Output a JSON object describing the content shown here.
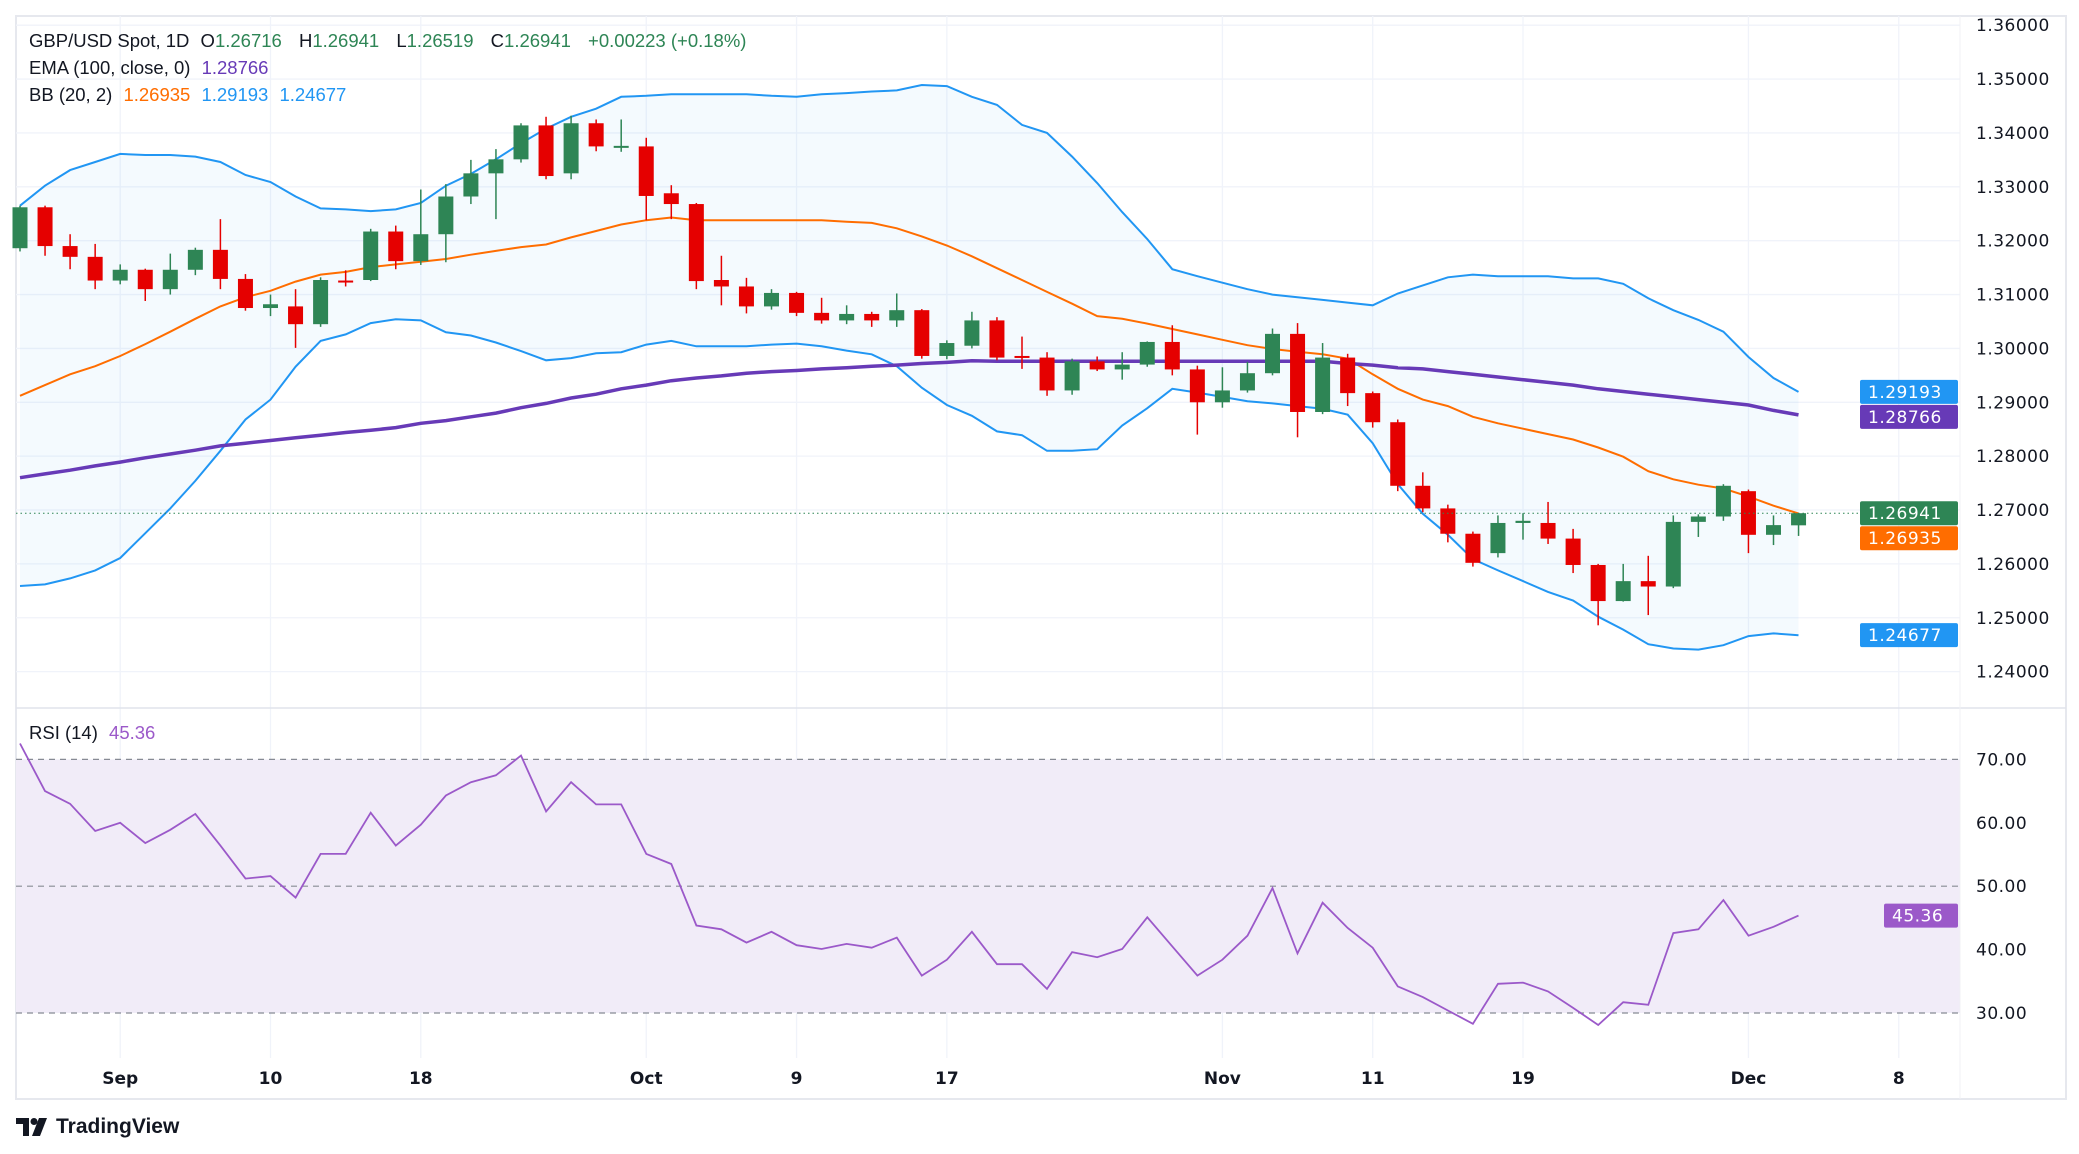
{
  "header": {
    "symbol": "GBP/USD Spot, 1D",
    "open_label": "O",
    "open": "1.26716",
    "high_label": "H",
    "high": "1.26941",
    "low_label": "L",
    "low": "1.26519",
    "close_label": "C",
    "close": "1.26941",
    "change": "+0.00223 (+0.18%)",
    "ema_label": "EMA (100, close, 0)",
    "ema_value": "1.28766",
    "bb_label": "BB (20, 2)",
    "bb_middle": "1.26935",
    "bb_upper": "1.29193",
    "bb_lower": "1.24677",
    "rsi_label": "RSI (14)",
    "rsi_value": "45.36"
  },
  "branding": {
    "logo_text": "TradingView"
  },
  "colors": {
    "up": "#2e8555",
    "down": "#e50000",
    "bb_band": "#2196f3",
    "bb_basis": "#ff6d00",
    "ema": "#673ab7",
    "rsi": "#9b59c9",
    "rsi_fill": "#f1ecf8"
  },
  "chart_data": [
    {
      "type": "candlestick",
      "title": "GBP/USD Spot, 1D",
      "ylim": [
        1.235,
        1.365
      ],
      "y_ticks": [
        "1.36000",
        "1.35000",
        "1.34000",
        "1.33000",
        "1.32000",
        "1.31000",
        "1.30000",
        "1.29000",
        "1.28000",
        "1.27000",
        "1.26000",
        "1.25000",
        "1.24000"
      ],
      "y_tick_values": [
        1.36,
        1.35,
        1.34,
        1.33,
        1.32,
        1.31,
        1.3,
        1.29,
        1.28,
        1.27,
        1.26,
        1.25,
        1.24
      ],
      "x_tick_labels": [
        {
          "label": "Sep",
          "bar": 4
        },
        {
          "label": "10",
          "bar": 10
        },
        {
          "label": "18",
          "bar": 16
        },
        {
          "label": "Oct",
          "bar": 25
        },
        {
          "label": "9",
          "bar": 31
        },
        {
          "label": "17",
          "bar": 37
        },
        {
          "label": "Nov",
          "bar": 48
        },
        {
          "label": "11",
          "bar": 54
        },
        {
          "label": "19",
          "bar": 60
        },
        {
          "label": "Dec",
          "bar": 69
        },
        {
          "label": "8",
          "bar": 75
        }
      ],
      "grid": true,
      "ohlc": [
        [
          1.3186,
          1.3265,
          1.318,
          1.3262
        ],
        [
          1.3262,
          1.3265,
          1.3172,
          1.319
        ],
        [
          1.319,
          1.3212,
          1.3147,
          1.317
        ],
        [
          1.317,
          1.3194,
          1.311,
          1.3126
        ],
        [
          1.3126,
          1.3156,
          1.3119,
          1.3146
        ],
        [
          1.3146,
          1.3148,
          1.3088,
          1.311
        ],
        [
          1.311,
          1.3176,
          1.31,
          1.3146
        ],
        [
          1.3146,
          1.3187,
          1.3136,
          1.3183
        ],
        [
          1.3183,
          1.324,
          1.311,
          1.3129
        ],
        [
          1.3129,
          1.3138,
          1.307,
          1.3075
        ],
        [
          1.3075,
          1.31,
          1.306,
          1.3082
        ],
        [
          1.3078,
          1.311,
          1.3001,
          1.3045
        ],
        [
          1.3045,
          1.3132,
          1.304,
          1.3127
        ],
        [
          1.3126,
          1.3145,
          1.3115,
          1.3125
        ],
        [
          1.3127,
          1.3222,
          1.3125,
          1.3217
        ],
        [
          1.3217,
          1.3228,
          1.3147,
          1.3162
        ],
        [
          1.3162,
          1.3295,
          1.3155,
          1.3212
        ],
        [
          1.3212,
          1.3305,
          1.316,
          1.3282
        ],
        [
          1.3282,
          1.335,
          1.3268,
          1.3325
        ],
        [
          1.3325,
          1.337,
          1.324,
          1.3351
        ],
        [
          1.3351,
          1.3418,
          1.3345,
          1.3414
        ],
        [
          1.3414,
          1.343,
          1.3314,
          1.332
        ],
        [
          1.3325,
          1.3432,
          1.3314,
          1.3418
        ],
        [
          1.3418,
          1.3425,
          1.3366,
          1.3375
        ],
        [
          1.3375,
          1.3425,
          1.3365,
          1.3376
        ],
        [
          1.3375,
          1.3391,
          1.3238,
          1.3283
        ],
        [
          1.3288,
          1.3303,
          1.324,
          1.3268
        ],
        [
          1.3268,
          1.327,
          1.311,
          1.3125
        ],
        [
          1.3127,
          1.3172,
          1.308,
          1.3115
        ],
        [
          1.3115,
          1.3131,
          1.3065,
          1.3078
        ],
        [
          1.3078,
          1.311,
          1.3072,
          1.3103
        ],
        [
          1.3103,
          1.3105,
          1.306,
          1.3066
        ],
        [
          1.3066,
          1.3094,
          1.3046,
          1.3052
        ],
        [
          1.3052,
          1.308,
          1.3045,
          1.3064
        ],
        [
          1.3064,
          1.3068,
          1.304,
          1.3052
        ],
        [
          1.3052,
          1.3102,
          1.304,
          1.3071
        ],
        [
          1.3071,
          1.3073,
          1.2981,
          1.2986
        ],
        [
          1.2986,
          1.3015,
          1.298,
          1.301
        ],
        [
          1.3005,
          1.3068,
          1.3,
          1.3052
        ],
        [
          1.3052,
          1.3058,
          1.2978,
          1.2983
        ],
        [
          1.2986,
          1.3022,
          1.2962,
          1.2985
        ],
        [
          1.2983,
          1.2993,
          1.2912,
          1.2922
        ],
        [
          1.2922,
          1.2981,
          1.2914,
          1.2976
        ],
        [
          1.2976,
          1.2985,
          1.2958,
          1.2961
        ],
        [
          1.2961,
          1.2993,
          1.2942,
          1.297
        ],
        [
          1.297,
          1.3013,
          1.2966,
          1.3012
        ],
        [
          1.3012,
          1.3043,
          1.295,
          1.2961
        ],
        [
          1.2961,
          1.2968,
          1.284,
          1.29
        ],
        [
          1.29,
          1.2965,
          1.289,
          1.2922
        ],
        [
          1.2922,
          1.2975,
          1.2918,
          1.2954
        ],
        [
          1.2954,
          1.3037,
          1.295,
          1.3027
        ],
        [
          1.3027,
          1.3047,
          1.2835,
          1.2882
        ],
        [
          1.2882,
          1.301,
          1.2878,
          1.2983
        ],
        [
          1.2983,
          1.299,
          1.2893,
          1.2917
        ],
        [
          1.2917,
          1.292,
          1.2853,
          1.2863
        ],
        [
          1.2863,
          1.2868,
          1.2735,
          1.2745
        ],
        [
          1.2745,
          1.277,
          1.2696,
          1.2703
        ],
        [
          1.2703,
          1.271,
          1.264,
          1.2656
        ],
        [
          1.2656,
          1.266,
          1.2595,
          1.2602
        ],
        [
          1.262,
          1.269,
          1.2612,
          1.2676
        ],
        [
          1.2676,
          1.2694,
          1.2645,
          1.268
        ],
        [
          1.2676,
          1.2715,
          1.2637,
          1.2647
        ],
        [
          1.2647,
          1.2665,
          1.2583,
          1.2598
        ],
        [
          1.2598,
          1.26,
          1.2486,
          1.2531
        ],
        [
          1.2531,
          1.26,
          1.253,
          1.2568
        ],
        [
          1.2568,
          1.2615,
          1.2505,
          1.2558
        ],
        [
          1.2558,
          1.269,
          1.2555,
          1.2678
        ],
        [
          1.2678,
          1.2692,
          1.265,
          1.2688
        ],
        [
          1.2688,
          1.2748,
          1.268,
          1.2745
        ],
        [
          1.2735,
          1.2738,
          1.262,
          1.2654
        ],
        [
          1.2654,
          1.269,
          1.2635,
          1.2672
        ],
        [
          1.26716,
          1.26941,
          1.26519,
          1.26941
        ]
      ],
      "ema100": [
        1.276,
        1.2767,
        1.2774,
        1.2782,
        1.2789,
        1.2797,
        1.2804,
        1.2811,
        1.2819,
        1.2824,
        1.2829,
        1.2834,
        1.2839,
        1.2844,
        1.2848,
        1.2853,
        1.2861,
        1.2866,
        1.2873,
        1.288,
        1.289,
        1.2898,
        1.2908,
        1.2915,
        1.2925,
        1.2932,
        1.294,
        1.2945,
        1.2949,
        1.2954,
        1.2957,
        1.2959,
        1.2962,
        1.2964,
        1.2967,
        1.2969,
        1.2972,
        1.2974,
        1.2977,
        1.2976,
        1.2976,
        1.2976,
        1.2976,
        1.2976,
        1.2976,
        1.2976,
        1.2976,
        1.2976,
        1.2976,
        1.2976,
        1.2976,
        1.2976,
        1.2976,
        1.2972,
        1.2969,
        1.2964,
        1.2962,
        1.2957,
        1.2952,
        1.2947,
        1.2942,
        1.2937,
        1.2932,
        1.2925,
        1.292,
        1.2915,
        1.291,
        1.2905,
        1.29,
        1.2895,
        1.2885,
        1.28766
      ],
      "bb_upper": [
        1.3265,
        1.3302,
        1.3331,
        1.3346,
        1.3361,
        1.3359,
        1.3359,
        1.3356,
        1.3346,
        1.3322,
        1.3309,
        1.3282,
        1.326,
        1.3258,
        1.3255,
        1.3258,
        1.327,
        1.3302,
        1.3324,
        1.3351,
        1.3381,
        1.3408,
        1.343,
        1.3445,
        1.3467,
        1.3469,
        1.3472,
        1.3472,
        1.3472,
        1.3472,
        1.3469,
        1.3467,
        1.3472,
        1.3474,
        1.3477,
        1.3479,
        1.3489,
        1.3487,
        1.3467,
        1.3452,
        1.3415,
        1.34,
        1.3356,
        1.3307,
        1.3253,
        1.3203,
        1.3147,
        1.3134,
        1.3122,
        1.311,
        1.31,
        1.3095,
        1.309,
        1.3085,
        1.308,
        1.3102,
        1.3117,
        1.3132,
        1.3137,
        1.3134,
        1.3134,
        1.3134,
        1.313,
        1.313,
        1.312,
        1.3093,
        1.3071,
        1.3053,
        1.3031,
        1.2984,
        1.2945,
        1.29193
      ],
      "bb_middle": [
        1.2912,
        1.2932,
        1.2952,
        1.2967,
        1.2986,
        1.3008,
        1.3031,
        1.3055,
        1.3078,
        1.3095,
        1.3107,
        1.3124,
        1.3137,
        1.3142,
        1.3151,
        1.3156,
        1.3161,
        1.3166,
        1.3174,
        1.3181,
        1.3188,
        1.3193,
        1.3206,
        1.3218,
        1.323,
        1.3238,
        1.3243,
        1.3238,
        1.3238,
        1.3238,
        1.3238,
        1.3238,
        1.3238,
        1.3235,
        1.3233,
        1.3223,
        1.3208,
        1.3191,
        1.3171,
        1.3149,
        1.3127,
        1.3105,
        1.3083,
        1.306,
        1.3055,
        1.3046,
        1.3036,
        1.3026,
        1.3016,
        1.3006,
        1.2999,
        1.2994,
        1.2989,
        1.2981,
        1.2952,
        1.2925,
        1.2905,
        1.2893,
        1.2873,
        1.2861,
        1.2851,
        1.2841,
        1.2831,
        1.2816,
        1.2799,
        1.2772,
        1.2757,
        1.2747,
        1.274,
        1.2725,
        1.2708,
        1.26935
      ],
      "bb_lower": [
        1.2559,
        1.2562,
        1.2573,
        1.2588,
        1.2611,
        1.2657,
        1.2703,
        1.2754,
        1.281,
        1.2868,
        1.2905,
        1.2966,
        1.3014,
        1.3026,
        1.3047,
        1.3054,
        1.3052,
        1.303,
        1.3024,
        1.3011,
        1.2995,
        1.2978,
        1.2982,
        1.2991,
        1.2993,
        1.3007,
        1.3014,
        1.3004,
        1.3004,
        1.3004,
        1.3007,
        1.3009,
        1.3004,
        1.2996,
        1.2989,
        1.2967,
        1.2927,
        1.2895,
        1.2875,
        1.2846,
        1.2839,
        1.281,
        1.281,
        1.2813,
        1.2857,
        1.2889,
        1.2925,
        1.2918,
        1.291,
        1.2902,
        1.2898,
        1.2893,
        1.2888,
        1.2877,
        1.2824,
        1.2748,
        1.2693,
        1.2654,
        1.2609,
        1.2588,
        1.2568,
        1.2548,
        1.2532,
        1.2502,
        1.2478,
        1.2451,
        1.2443,
        1.2441,
        1.2449,
        1.2466,
        1.2471,
        1.24677
      ],
      "last_price_labels": [
        {
          "series": "bb_upper",
          "text": "1.29193"
        },
        {
          "series": "ema100",
          "text": "1.28766"
        },
        {
          "series": "close",
          "text": "1.26941"
        },
        {
          "series": "bb_middle",
          "text": "1.26935"
        },
        {
          "series": "bb_lower",
          "text": "1.24677"
        }
      ]
    },
    {
      "type": "line",
      "title": "RSI (14)",
      "ylim": [
        24,
        77
      ],
      "y_ticks": [
        "70.00",
        "60.00",
        "50.00",
        "40.00",
        "30.00"
      ],
      "y_tick_values": [
        70,
        60,
        50,
        40,
        30
      ],
      "bands": {
        "upper": 70,
        "middle": 50,
        "lower": 30
      },
      "values": [
        72.5,
        65.0,
        63.0,
        58.7,
        60.0,
        56.8,
        58.9,
        61.4,
        56.4,
        51.2,
        51.6,
        48.2,
        55.1,
        55.1,
        61.6,
        56.4,
        59.7,
        64.3,
        66.4,
        67.5,
        70.6,
        61.8,
        66.4,
        62.9,
        62.9,
        55.1,
        53.5,
        43.8,
        43.2,
        41.1,
        42.8,
        40.7,
        40.1,
        40.9,
        40.3,
        41.9,
        35.9,
        38.4,
        42.8,
        37.7,
        37.7,
        33.8,
        39.6,
        38.8,
        40.1,
        45.1,
        40.5,
        35.9,
        38.4,
        42.2,
        49.7,
        39.4,
        47.4,
        43.4,
        40.3,
        34.2,
        32.5,
        30.4,
        28.3,
        34.6,
        34.8,
        33.4,
        30.8,
        28.1,
        31.7,
        31.3,
        42.6,
        43.2,
        47.8,
        42.2,
        43.6,
        45.36
      ],
      "last_value_label": "45.36"
    }
  ]
}
